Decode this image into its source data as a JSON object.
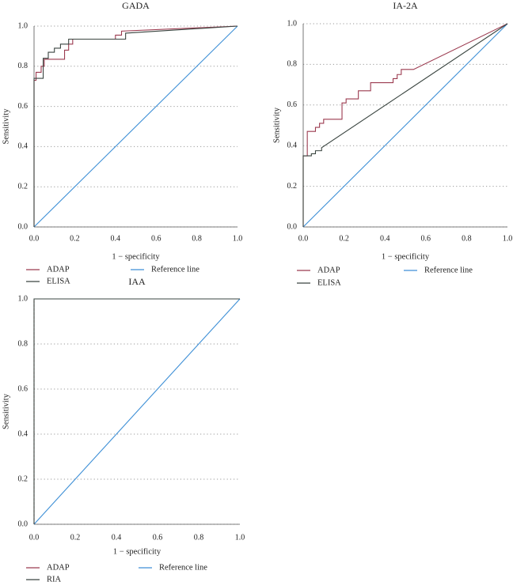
{
  "figure": {
    "panels": [
      "GADA",
      "IA-2A",
      "IAA"
    ]
  },
  "chart_data": [
    {
      "type": "line",
      "title": "GADA",
      "xlabel": "1 − specificity",
      "ylabel": "Sensitivity",
      "xlim": [
        0,
        1
      ],
      "ylim": [
        0,
        1
      ],
      "xticks": [
        "0.0",
        "0.2",
        "0.4",
        "0.6",
        "0.8",
        "1.0"
      ],
      "yticks": [
        "0.0",
        "0.2",
        "0.4",
        "0.6",
        "0.8",
        "1.0"
      ],
      "grid": "horizontal-dotted",
      "legend_position": "bottom",
      "series": [
        {
          "name": "ADAP",
          "color": "#9b3a4f",
          "step": true,
          "x": [
            0,
            0,
            0.01,
            0.01,
            0.035,
            0.035,
            0.05,
            0.05,
            0.15,
            0.15,
            0.17,
            0.17,
            0.19,
            0.19,
            0.4,
            0.4,
            0.43,
            0.43,
            1.0
          ],
          "y": [
            0,
            0.73,
            0.73,
            0.77,
            0.77,
            0.8,
            0.8,
            0.835,
            0.835,
            0.88,
            0.88,
            0.91,
            0.91,
            0.935,
            0.935,
            0.955,
            0.955,
            0.975,
            1.0
          ]
        },
        {
          "name": "ELISA",
          "color": "#3a4540",
          "step": true,
          "x": [
            0,
            0,
            0.045,
            0.045,
            0.07,
            0.07,
            0.1,
            0.1,
            0.13,
            0.13,
            0.17,
            0.17,
            0.45,
            0.45,
            1.0
          ],
          "y": [
            0,
            0.74,
            0.74,
            0.84,
            0.84,
            0.87,
            0.87,
            0.89,
            0.89,
            0.91,
            0.91,
            0.935,
            0.935,
            0.965,
            1.0
          ]
        },
        {
          "name": "Reference line",
          "color": "#3d8fd6",
          "step": false,
          "x": [
            0,
            1
          ],
          "y": [
            0,
            1
          ]
        }
      ]
    },
    {
      "type": "line",
      "title": "IA-2A",
      "xlabel": "1 − specificity",
      "ylabel": "Sensitivity",
      "xlim": [
        0,
        1
      ],
      "ylim": [
        0,
        1
      ],
      "xticks": [
        "0.0",
        "0.2",
        "0.4",
        "0.6",
        "0.8",
        "1.0"
      ],
      "yticks": [
        "0.0",
        "0.2",
        "0.4",
        "0.6",
        "0.8",
        "1.0"
      ],
      "grid": "horizontal-dotted",
      "legend_position": "bottom",
      "series": [
        {
          "name": "ADAP",
          "color": "#9b3a4f",
          "step": true,
          "x": [
            0,
            0,
            0.02,
            0.02,
            0.06,
            0.06,
            0.08,
            0.08,
            0.1,
            0.1,
            0.19,
            0.19,
            0.21,
            0.21,
            0.27,
            0.27,
            0.33,
            0.33,
            0.44,
            0.44,
            0.46,
            0.46,
            0.48,
            0.48,
            0.54,
            1.0
          ],
          "y": [
            0,
            0.35,
            0.35,
            0.47,
            0.47,
            0.49,
            0.49,
            0.51,
            0.51,
            0.53,
            0.53,
            0.61,
            0.61,
            0.63,
            0.63,
            0.67,
            0.67,
            0.71,
            0.71,
            0.73,
            0.73,
            0.75,
            0.75,
            0.775,
            0.775,
            1.0
          ]
        },
        {
          "name": "ELISA",
          "color": "#3a4540",
          "step": true,
          "x": [
            0,
            0,
            0.04,
            0.04,
            0.06,
            0.06,
            0.09,
            0.09,
            1.0
          ],
          "y": [
            0,
            0.35,
            0.35,
            0.36,
            0.36,
            0.375,
            0.375,
            0.39,
            1.0
          ]
        },
        {
          "name": "Reference line",
          "color": "#3d8fd6",
          "step": false,
          "x": [
            0,
            1
          ],
          "y": [
            0,
            1
          ]
        }
      ]
    },
    {
      "type": "line",
      "title": "IAA",
      "xlabel": "1 − specificity",
      "ylabel": "Sensitivity",
      "xlim": [
        0,
        1
      ],
      "ylim": [
        0,
        1
      ],
      "xticks": [
        "0.0",
        "0.2",
        "0.4",
        "0.6",
        "0.8",
        "1.0"
      ],
      "yticks": [
        "0.0",
        "0.2",
        "0.4",
        "0.6",
        "0.8",
        "1.0"
      ],
      "grid": "horizontal-dotted",
      "legend_position": "bottom",
      "series": [
        {
          "name": "ADAP",
          "color": "#9b3a4f",
          "step": true,
          "dashed": true,
          "x": [
            0,
            0,
            1.0
          ],
          "y": [
            0,
            1.0,
            1.0
          ]
        },
        {
          "name": "RIA",
          "color": "#3a4540",
          "step": true,
          "x": [
            0,
            0,
            1.0
          ],
          "y": [
            0,
            1.0,
            1.0
          ]
        },
        {
          "name": "Reference line",
          "color": "#3d8fd6",
          "step": false,
          "x": [
            0,
            1
          ],
          "y": [
            0,
            1
          ]
        }
      ]
    }
  ]
}
